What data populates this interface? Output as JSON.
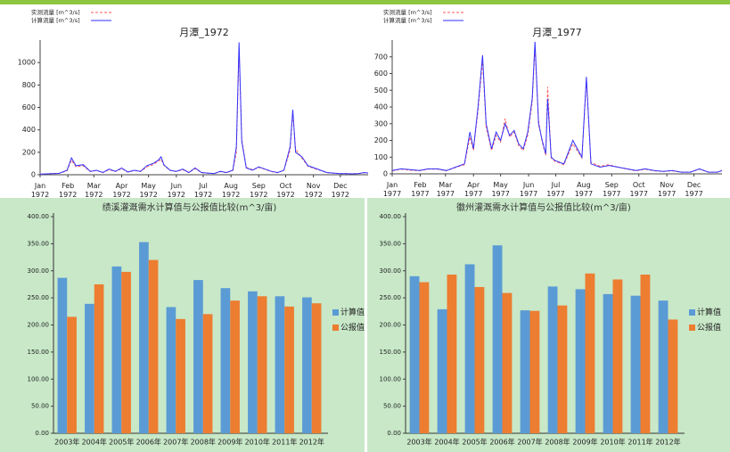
{
  "chart_data": [
    {
      "type": "line",
      "title": "月潭_1972",
      "legend": "top-left",
      "x": [
        0,
        7,
        14,
        21,
        30,
        35,
        40,
        48,
        56,
        63,
        70,
        77,
        84,
        91,
        98,
        105,
        112,
        119,
        126,
        132,
        135,
        138,
        145,
        152,
        159,
        166,
        173,
        180,
        187,
        194,
        201,
        208,
        215,
        219,
        222,
        225,
        230,
        237,
        244,
        251,
        258,
        265,
        272,
        279,
        282,
        285,
        292,
        299,
        306,
        313,
        320,
        327,
        334,
        341,
        348,
        355,
        362,
        366
      ],
      "xlim": [
        0,
        366
      ],
      "xticks": [
        {
          "value": 0,
          "label": "Jan 1972"
        },
        {
          "value": 31,
          "label": "Feb 1972"
        },
        {
          "value": 60,
          "label": "Mar 1972"
        },
        {
          "value": 91,
          "label": "Apr 1972"
        },
        {
          "value": 121,
          "label": "May 1972"
        },
        {
          "value": 152,
          "label": "Jun 1972"
        },
        {
          "value": 182,
          "label": "Jul 1972"
        },
        {
          "value": 213,
          "label": "Aug 1972"
        },
        {
          "value": 244,
          "label": "Sep 1972"
        },
        {
          "value": 274,
          "label": "Oct 1972"
        },
        {
          "value": 305,
          "label": "Nov 1972"
        },
        {
          "value": 335,
          "label": "Dec 1972"
        }
      ],
      "ylim": [
        0,
        1200
      ],
      "yticks": [
        0,
        200,
        400,
        600,
        800,
        1000
      ],
      "series": [
        {
          "name": "实测流量 [m^3/s]",
          "color": "#ff5a5a",
          "dashed": true,
          "values": [
            5,
            8,
            10,
            12,
            35,
            130,
            70,
            80,
            28,
            38,
            18,
            45,
            28,
            55,
            22,
            38,
            28,
            70,
            90,
            120,
            140,
            85,
            38,
            28,
            45,
            18,
            55,
            18,
            14,
            10,
            28,
            18,
            38,
            200,
            1120,
            320,
            65,
            45,
            65,
            48,
            28,
            18,
            38,
            220,
            560,
            230,
            150,
            75,
            55,
            38,
            18,
            14,
            10,
            10,
            8,
            10,
            18,
            14
          ]
        },
        {
          "name": "计算流量 [m^3/s]",
          "color": "#3232ff",
          "dashed": false,
          "values": [
            5,
            8,
            10,
            12,
            40,
            150,
            80,
            90,
            30,
            40,
            20,
            50,
            30,
            60,
            25,
            40,
            30,
            80,
            100,
            130,
            160,
            90,
            40,
            30,
            50,
            20,
            60,
            20,
            15,
            10,
            30,
            20,
            40,
            250,
            1180,
            300,
            60,
            40,
            70,
            50,
            30,
            20,
            40,
            250,
            580,
            200,
            160,
            80,
            60,
            40,
            20,
            15,
            10,
            10,
            8,
            10,
            20,
            15
          ]
        }
      ]
    },
    {
      "type": "line",
      "title": "月潭_1977",
      "legend": "top-left",
      "x": [
        0,
        10,
        20,
        30,
        40,
        50,
        60,
        70,
        80,
        86,
        90,
        95,
        100,
        104,
        110,
        115,
        120,
        125,
        130,
        135,
        140,
        145,
        150,
        155,
        158,
        162,
        166,
        170,
        172,
        176,
        180,
        190,
        200,
        210,
        215,
        220,
        230,
        240,
        250,
        260,
        270,
        280,
        290,
        300,
        310,
        320,
        330,
        340,
        350,
        360,
        365
      ],
      "xlim": [
        0,
        365
      ],
      "xticks": [
        {
          "value": 0,
          "label": "Jan 1977"
        },
        {
          "value": 31,
          "label": "Feb 1977"
        },
        {
          "value": 59,
          "label": "Mar 1977"
        },
        {
          "value": 90,
          "label": "Apr 1977"
        },
        {
          "value": 120,
          "label": "May 1977"
        },
        {
          "value": 151,
          "label": "Jun 1977"
        },
        {
          "value": 181,
          "label": "Jul 1977"
        },
        {
          "value": 212,
          "label": "Aug 1977"
        },
        {
          "value": 243,
          "label": "Sep 1977"
        },
        {
          "value": 273,
          "label": "Oct 1977"
        },
        {
          "value": 304,
          "label": "Nov 1977"
        },
        {
          "value": 334,
          "label": "Dec 1977"
        }
      ],
      "ylim": [
        0,
        800
      ],
      "yticks": [
        0,
        100,
        200,
        300,
        400,
        500,
        600,
        700
      ],
      "series": [
        {
          "name": "实测流量 [m^3/s]",
          "color": "#ff5a5a",
          "dashed": true,
          "values": [
            18,
            28,
            22,
            18,
            28,
            28,
            18,
            38,
            55,
            220,
            140,
            380,
            680,
            280,
            140,
            230,
            190,
            330,
            220,
            250,
            170,
            140,
            230,
            430,
            760,
            320,
            190,
            110,
            520,
            95,
            75,
            55,
            180,
            95,
            560,
            70,
            45,
            55,
            40,
            28,
            18,
            28,
            18,
            14,
            18,
            10,
            10,
            28,
            10,
            10,
            18
          ]
        },
        {
          "name": "计算流量 [m^3/s]",
          "color": "#3232ff",
          "dashed": false,
          "values": [
            20,
            30,
            25,
            20,
            30,
            30,
            20,
            40,
            60,
            250,
            150,
            400,
            710,
            300,
            150,
            250,
            200,
            300,
            230,
            260,
            180,
            150,
            250,
            450,
            790,
            300,
            200,
            120,
            450,
            100,
            80,
            60,
            200,
            100,
            580,
            60,
            40,
            50,
            40,
            30,
            20,
            30,
            20,
            15,
            20,
            10,
            10,
            30,
            10,
            10,
            20
          ]
        }
      ]
    },
    {
      "type": "bar",
      "title": "绩溪灌溉需水计算值与公报值比较(m^3/亩)",
      "legend": "right",
      "categories": [
        "2003年",
        "2004年",
        "2005年",
        "2006年",
        "2007年",
        "2008年",
        "2009年",
        "2010年",
        "2011年",
        "2012年"
      ],
      "ylim": [
        0,
        400
      ],
      "yticks": [
        {
          "value": 0,
          "label": "0.00"
        },
        {
          "value": 50,
          "label": "50.00"
        },
        {
          "value": 100,
          "label": "100.00"
        },
        {
          "value": 150,
          "label": "150.00"
        },
        {
          "value": 200,
          "label": "200.00"
        },
        {
          "value": 250,
          "label": "250.00"
        },
        {
          "value": 300,
          "label": "300.00"
        },
        {
          "value": 350,
          "label": "350.00"
        },
        {
          "value": 400,
          "label": "400.00"
        }
      ],
      "series": [
        {
          "name": "计算值",
          "color": "#5b9bd5",
          "values": [
            287,
            239,
            308,
            353,
            233,
            283,
            268,
            262,
            253,
            251
          ]
        },
        {
          "name": "公报值",
          "color": "#ed7d31",
          "values": [
            215,
            275,
            298,
            320,
            211,
            220,
            245,
            253,
            234,
            240
          ]
        }
      ]
    },
    {
      "type": "bar",
      "title": "徽州灌溉需水计算值与公报值比较(m^3/亩)",
      "legend": "right",
      "categories": [
        "2003年",
        "2004年",
        "2005年",
        "2006年",
        "2007年",
        "2008年",
        "2009年",
        "2010年",
        "2011年",
        "2012年"
      ],
      "ylim": [
        0,
        400
      ],
      "yticks": [
        {
          "value": 0,
          "label": "0.00"
        },
        {
          "value": 50,
          "label": "50.00"
        },
        {
          "value": 100,
          "label": "100.00"
        },
        {
          "value": 150,
          "label": "150.00"
        },
        {
          "value": 200,
          "label": "200.00"
        },
        {
          "value": 250,
          "label": "250.00"
        },
        {
          "value": 300,
          "label": "300.00"
        },
        {
          "value": 350,
          "label": "350.00"
        },
        {
          "value": 400,
          "label": "400.00"
        }
      ],
      "series": [
        {
          "name": "计算值",
          "color": "#5b9bd5",
          "values": [
            290,
            229,
            312,
            347,
            227,
            271,
            266,
            257,
            254,
            245
          ]
        },
        {
          "name": "公报值",
          "color": "#ed7d31",
          "values": [
            279,
            293,
            270,
            259,
            226,
            236,
            295,
            284,
            293,
            210
          ]
        }
      ]
    }
  ]
}
